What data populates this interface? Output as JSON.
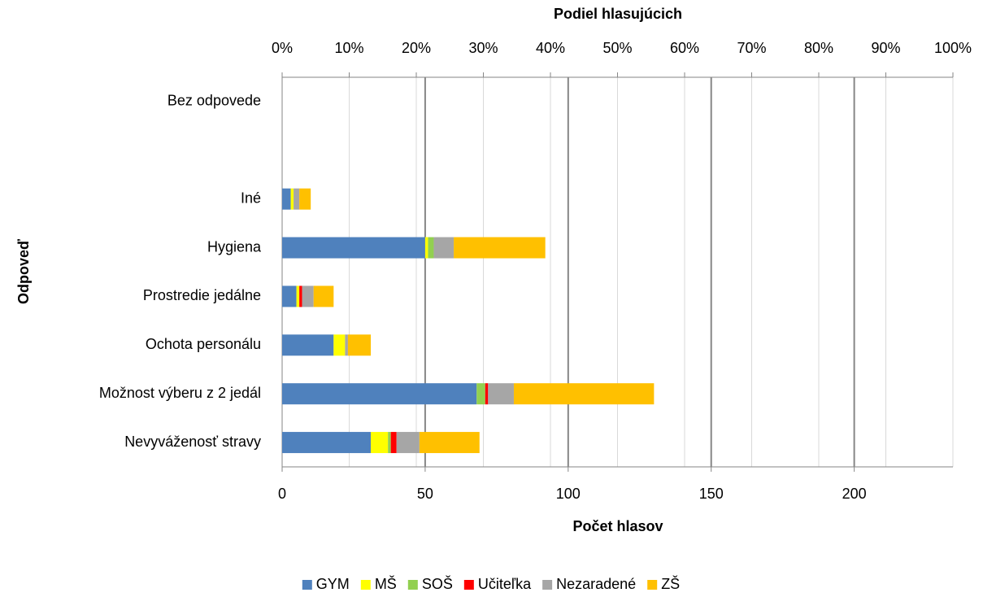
{
  "chart_data": {
    "type": "bar",
    "orientation": "horizontal",
    "stacked": true,
    "x2_label": "Podiel hlasujúcich",
    "x_label": "Počet hlasov",
    "y_label": "Odpoveď",
    "categories": [
      "Bez odpovede",
      null,
      "Iné",
      "Hygiena",
      "Prostredie jedálne",
      "Ochota personálu",
      "Možnost výberu z 2 jedál",
      "Nevyváženosť stravy"
    ],
    "series": [
      {
        "name": "GYM",
        "color": "#4f81bd",
        "values": [
          0,
          null,
          3,
          50,
          5,
          18,
          68,
          31
        ]
      },
      {
        "name": "MŠ",
        "color": "#ffff00",
        "values": [
          0,
          null,
          1,
          1,
          1,
          4,
          0,
          6
        ]
      },
      {
        "name": "SOŠ",
        "color": "#92d050",
        "values": [
          0,
          null,
          0,
          2,
          0,
          0,
          3,
          1
        ]
      },
      {
        "name": "Učiteľka",
        "color": "#ff0000",
        "values": [
          0,
          null,
          0,
          0,
          1,
          0,
          1,
          2
        ]
      },
      {
        "name": "Nezaradené",
        "color": "#a6a6a6",
        "values": [
          0,
          null,
          2,
          7,
          4,
          1,
          9,
          8
        ]
      },
      {
        "name": "ZŠ",
        "color": "#ffc000",
        "values": [
          0,
          null,
          4,
          32,
          7,
          8,
          49,
          21
        ]
      }
    ],
    "xlim": [
      0,
      234.5
    ],
    "xticks": [
      0,
      50,
      100,
      150,
      200
    ],
    "x2lim": [
      0,
      100
    ],
    "x2ticks": [
      {
        "value": 0,
        "label": "0%"
      },
      {
        "value": 10,
        "label": "10%"
      },
      {
        "value": 20,
        "label": "20%"
      },
      {
        "value": 30,
        "label": "30%"
      },
      {
        "value": 40,
        "label": "40%"
      },
      {
        "value": 50,
        "label": "50%"
      },
      {
        "value": 60,
        "label": "60%"
      },
      {
        "value": 70,
        "label": "70%"
      },
      {
        "value": 80,
        "label": "80%"
      },
      {
        "value": 90,
        "label": "90%"
      },
      {
        "value": 100,
        "label": "100%"
      }
    ],
    "grid": true,
    "legend": "bottom"
  }
}
